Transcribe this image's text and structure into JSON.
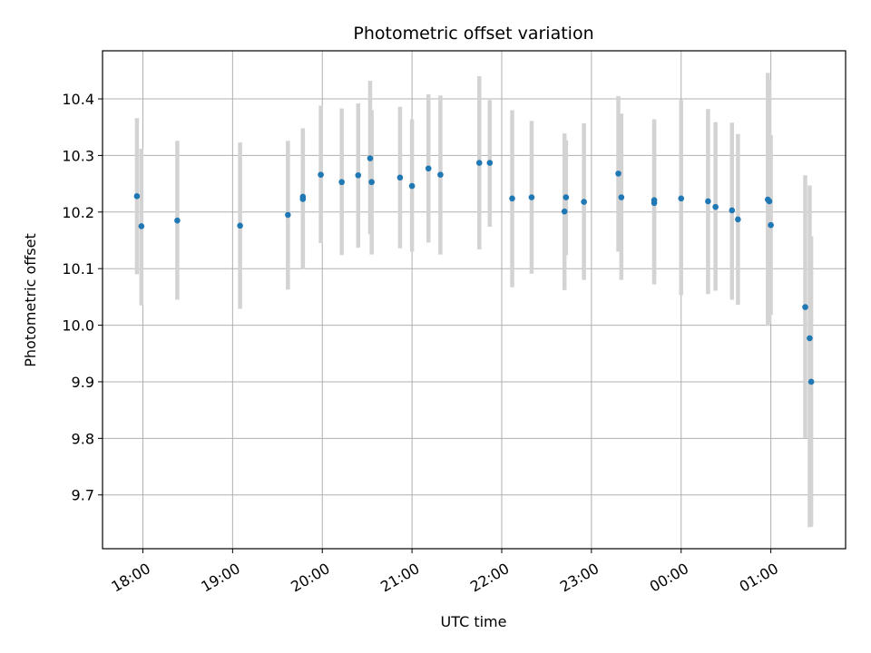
{
  "chart_data": {
    "type": "scatter",
    "title": "Photometric offset variation",
    "xlabel": "UTC time",
    "ylabel": "Photometric offset",
    "xlim": [
      "2024-01-01 17:33",
      "2024-01-02 01:50"
    ],
    "ylim": [
      9.605,
      10.485
    ],
    "x_ticks": [
      {
        "t": "2024-01-01 18:00",
        "label": "18:00"
      },
      {
        "t": "2024-01-01 19:00",
        "label": "19:00"
      },
      {
        "t": "2024-01-01 20:00",
        "label": "20:00"
      },
      {
        "t": "2024-01-01 21:00",
        "label": "21:00"
      },
      {
        "t": "2024-01-01 22:00",
        "label": "22:00"
      },
      {
        "t": "2024-01-01 23:00",
        "label": "23:00"
      },
      {
        "t": "2024-01-02 00:00",
        "label": "00:00"
      },
      {
        "t": "2024-01-02 01:00",
        "label": "01:00"
      }
    ],
    "y_ticks": [
      9.7,
      9.8,
      9.9,
      10.0,
      10.1,
      10.2,
      10.3,
      10.4
    ],
    "grid": true,
    "point_color": "#1f77b4",
    "errorbar_color": "#d3d3d3",
    "points": [
      {
        "t": "2024-01-01 17:56",
        "y": 10.228,
        "lo": 10.09,
        "hi": 10.366
      },
      {
        "t": "2024-01-01 17:59",
        "y": 10.175,
        "lo": 10.035,
        "hi": 10.312
      },
      {
        "t": "2024-01-01 18:23",
        "y": 10.185,
        "lo": 10.045,
        "hi": 10.326
      },
      {
        "t": "2024-01-01 19:05",
        "y": 10.176,
        "lo": 10.029,
        "hi": 10.323
      },
      {
        "t": "2024-01-01 19:37",
        "y": 10.195,
        "lo": 10.063,
        "hi": 10.326
      },
      {
        "t": "2024-01-01 19:47",
        "y": 10.227,
        "lo": 10.099,
        "hi": 10.348
      },
      {
        "t": "2024-01-01 19:47",
        "y": 10.223,
        "lo": 10.11,
        "hi": 10.34
      },
      {
        "t": "2024-01-01 19:59",
        "y": 10.266,
        "lo": 10.145,
        "hi": 10.388
      },
      {
        "t": "2024-01-01 20:13",
        "y": 10.253,
        "lo": 10.124,
        "hi": 10.383
      },
      {
        "t": "2024-01-01 20:24",
        "y": 10.265,
        "lo": 10.137,
        "hi": 10.392
      },
      {
        "t": "2024-01-01 20:32",
        "y": 10.295,
        "lo": 10.161,
        "hi": 10.432
      },
      {
        "t": "2024-01-01 20:33",
        "y": 10.253,
        "lo": 10.125,
        "hi": 10.38
      },
      {
        "t": "2024-01-01 20:52",
        "y": 10.261,
        "lo": 10.136,
        "hi": 10.386
      },
      {
        "t": "2024-01-01 21:00",
        "y": 10.246,
        "lo": 10.13,
        "hi": 10.364
      },
      {
        "t": "2024-01-01 21:11",
        "y": 10.277,
        "lo": 10.146,
        "hi": 10.408
      },
      {
        "t": "2024-01-01 21:19",
        "y": 10.266,
        "lo": 10.125,
        "hi": 10.406
      },
      {
        "t": "2024-01-01 21:45",
        "y": 10.287,
        "lo": 10.134,
        "hi": 10.44
      },
      {
        "t": "2024-01-01 21:52",
        "y": 10.287,
        "lo": 10.174,
        "hi": 10.398
      },
      {
        "t": "2024-01-01 22:07",
        "y": 10.224,
        "lo": 10.067,
        "hi": 10.38
      },
      {
        "t": "2024-01-01 22:20",
        "y": 10.226,
        "lo": 10.091,
        "hi": 10.361
      },
      {
        "t": "2024-01-01 22:42",
        "y": 10.201,
        "lo": 10.062,
        "hi": 10.339
      },
      {
        "t": "2024-01-01 22:43",
        "y": 10.226,
        "lo": 10.124,
        "hi": 10.327
      },
      {
        "t": "2024-01-01 22:55",
        "y": 10.218,
        "lo": 10.08,
        "hi": 10.357
      },
      {
        "t": "2024-01-01 23:18",
        "y": 10.268,
        "lo": 10.13,
        "hi": 10.405
      },
      {
        "t": "2024-01-01 23:20",
        "y": 10.226,
        "lo": 10.08,
        "hi": 10.374
      },
      {
        "t": "2024-01-01 23:42",
        "y": 10.221,
        "lo": 10.072,
        "hi": 10.364
      },
      {
        "t": "2024-01-01 23:42",
        "y": 10.216,
        "lo": 10.083,
        "hi": 10.36
      },
      {
        "t": "2024-01-02 00:00",
        "y": 10.224,
        "lo": 10.053,
        "hi": 10.398
      },
      {
        "t": "2024-01-02 00:18",
        "y": 10.219,
        "lo": 10.055,
        "hi": 10.382
      },
      {
        "t": "2024-01-02 00:23",
        "y": 10.209,
        "lo": 10.061,
        "hi": 10.359
      },
      {
        "t": "2024-01-02 00:34",
        "y": 10.203,
        "lo": 10.045,
        "hi": 10.358
      },
      {
        "t": "2024-01-02 00:38",
        "y": 10.187,
        "lo": 10.036,
        "hi": 10.338
      },
      {
        "t": "2024-01-02 00:58",
        "y": 10.222,
        "lo": 9.999,
        "hi": 10.446
      },
      {
        "t": "2024-01-02 00:59",
        "y": 10.219,
        "lo": 10.004,
        "hi": 10.433
      },
      {
        "t": "2024-01-02 01:00",
        "y": 10.177,
        "lo": 10.018,
        "hi": 10.336
      },
      {
        "t": "2024-01-02 01:23",
        "y": 10.032,
        "lo": 9.801,
        "hi": 10.265
      },
      {
        "t": "2024-01-02 01:26",
        "y": 9.977,
        "lo": 9.643,
        "hi": 10.247
      },
      {
        "t": "2024-01-02 01:27",
        "y": 9.9,
        "lo": 9.644,
        "hi": 10.157
      }
    ]
  }
}
